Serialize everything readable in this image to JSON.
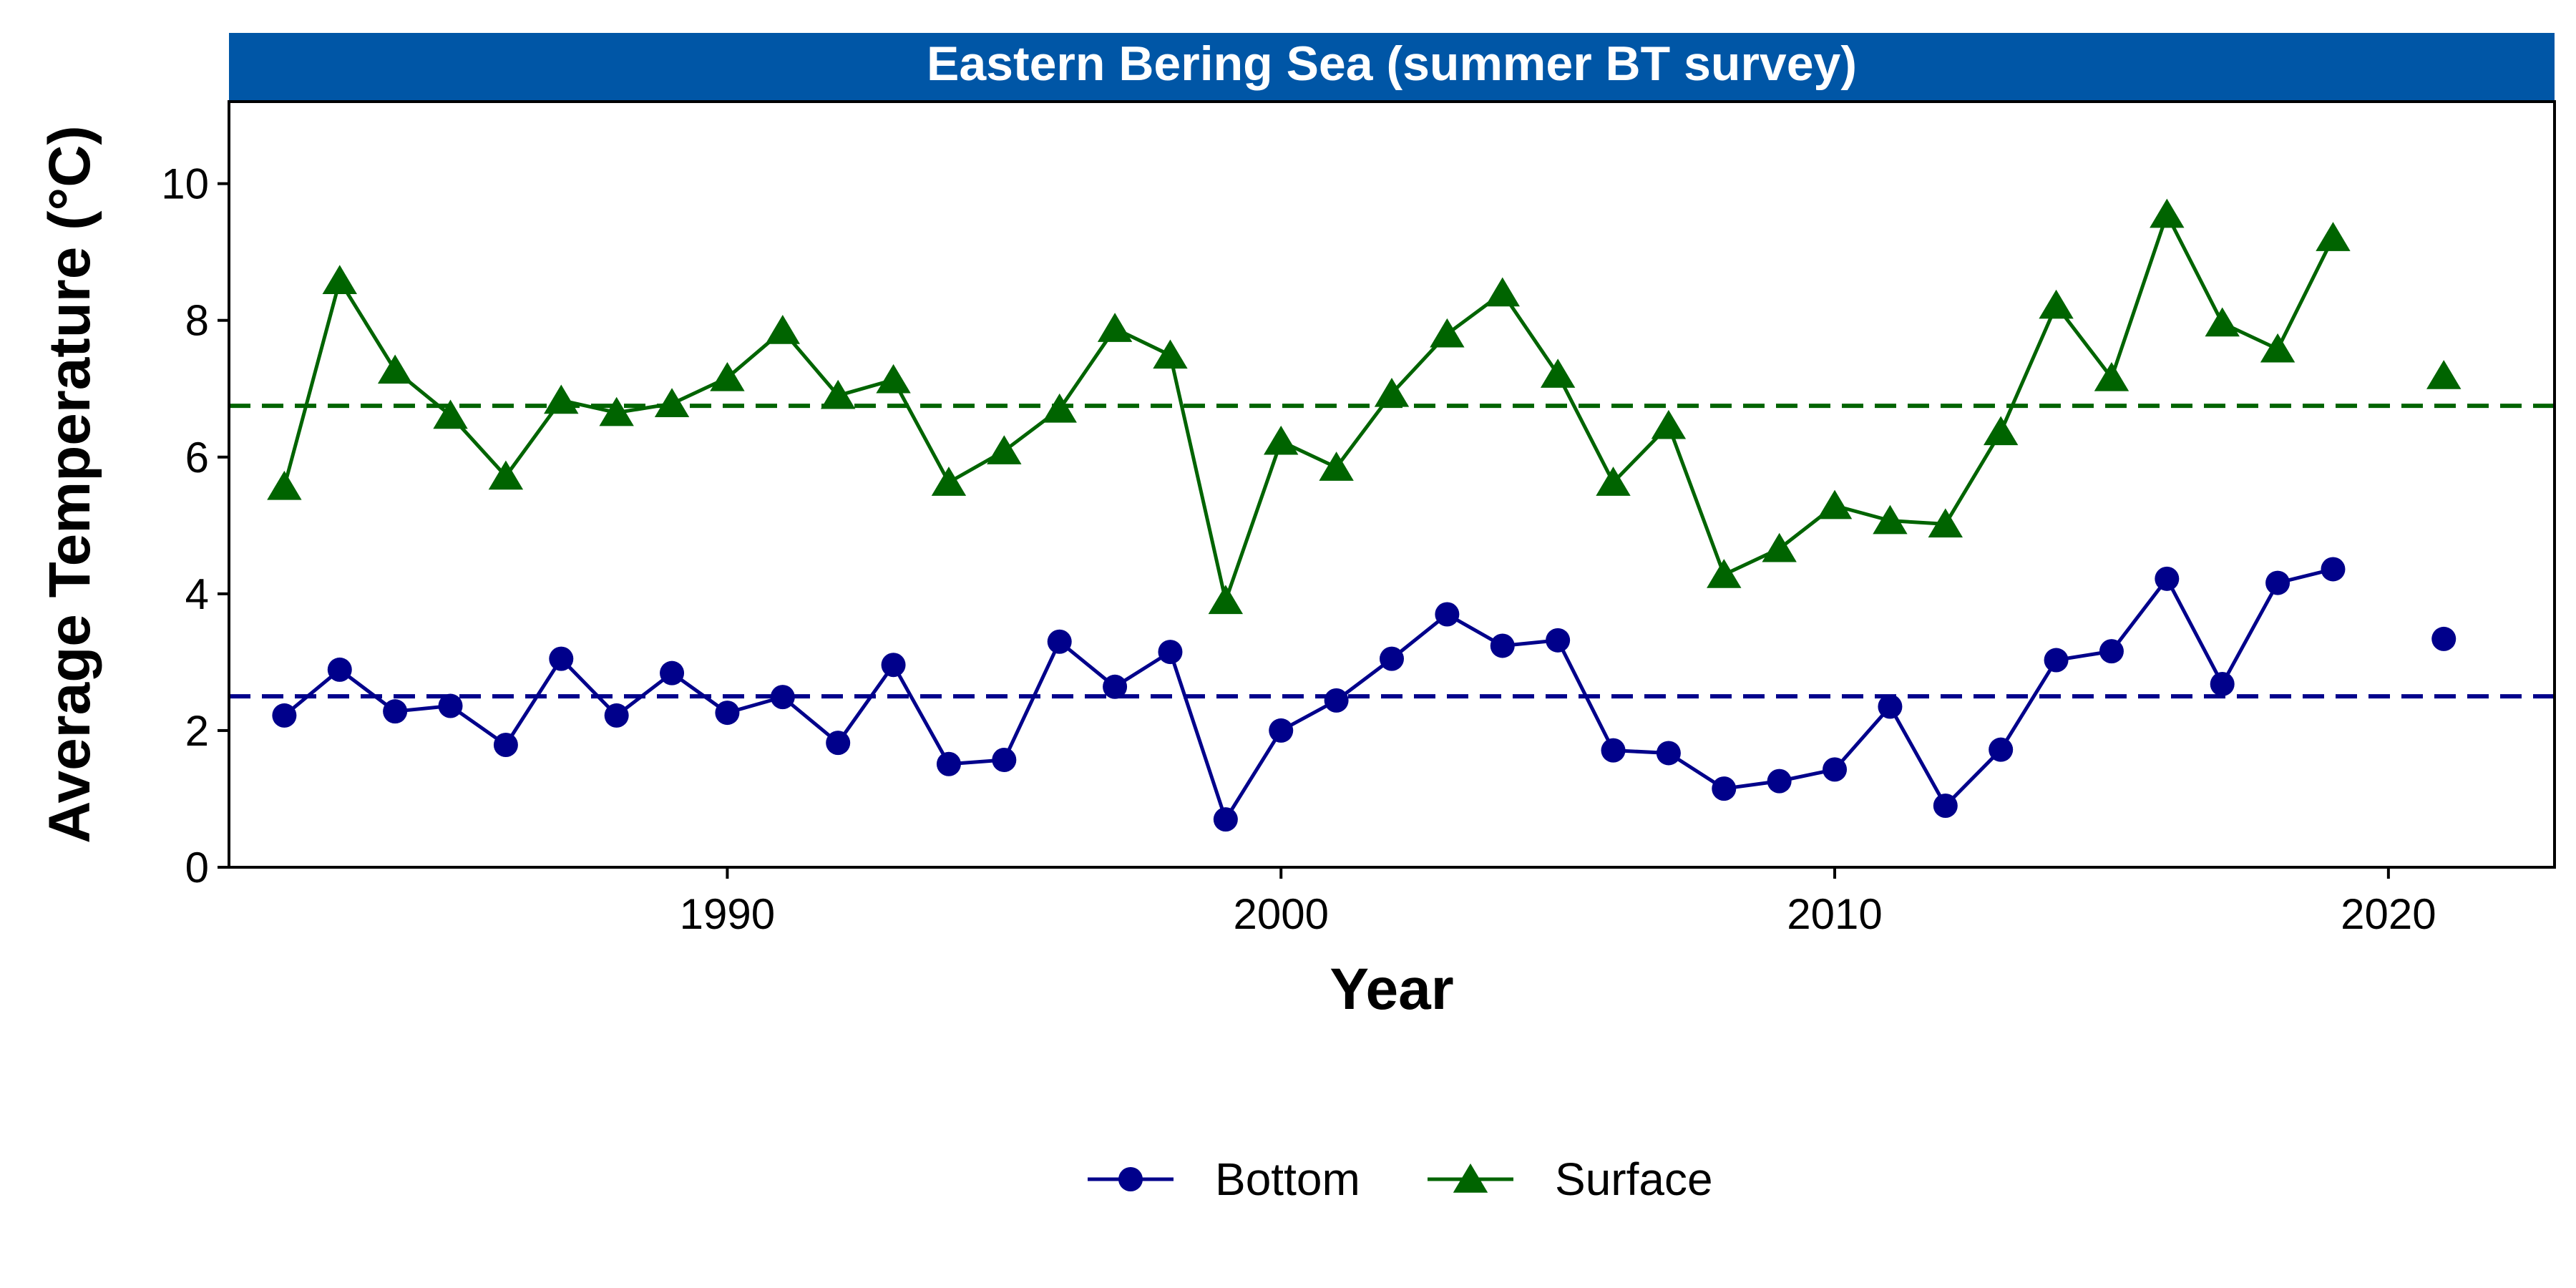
{
  "chart_data": {
    "type": "line",
    "title": "Eastern Bering Sea (summer BT survey)",
    "xlabel": "Year",
    "ylabel": "Average Temperature (°C)",
    "xlim": [
      1981,
      2023
    ],
    "ylim": [
      0,
      11.2
    ],
    "x_ticks": [
      1990,
      2000,
      2010,
      2020
    ],
    "y_ticks": [
      0,
      2,
      4,
      6,
      8,
      10
    ],
    "grid": false,
    "legend_position": "bottom",
    "colors": {
      "strip": "#0056A6",
      "bottom": "#00008B",
      "surface": "#006400"
    },
    "series": [
      {
        "name": "Bottom",
        "marker": "circle",
        "color": "#00008B",
        "mean": 2.5,
        "x": [
          1982,
          1983,
          1984,
          1985,
          1986,
          1987,
          1988,
          1989,
          1990,
          1991,
          1992,
          1993,
          1994,
          1995,
          1996,
          1997,
          1998,
          1999,
          2000,
          2001,
          2002,
          2003,
          2004,
          2005,
          2006,
          2007,
          2008,
          2009,
          2010,
          2011,
          2012,
          2013,
          2014,
          2015,
          2016,
          2017,
          2018,
          2019,
          2021
        ],
        "values": [
          2.22,
          2.89,
          2.28,
          2.36,
          1.79,
          3.05,
          2.22,
          2.84,
          2.26,
          2.49,
          1.82,
          2.96,
          1.51,
          1.57,
          3.3,
          2.64,
          3.15,
          0.7,
          2.0,
          2.44,
          3.05,
          3.7,
          3.24,
          3.32,
          1.71,
          1.67,
          1.15,
          1.26,
          1.43,
          2.35,
          0.9,
          1.72,
          3.03,
          3.16,
          4.22,
          2.68,
          4.16,
          4.36,
          3.34
        ]
      },
      {
        "name": "Surface",
        "marker": "triangle",
        "color": "#006400",
        "mean": 6.75,
        "x": [
          1982,
          1983,
          1984,
          1985,
          1986,
          1987,
          1988,
          1989,
          1990,
          1991,
          1992,
          1993,
          1994,
          1995,
          1996,
          1997,
          1998,
          1999,
          2000,
          2001,
          2002,
          2003,
          2004,
          2005,
          2006,
          2007,
          2008,
          2009,
          2010,
          2011,
          2012,
          2013,
          2014,
          2015,
          2016,
          2017,
          2018,
          2019,
          2021
        ],
        "values": [
          5.57,
          8.58,
          7.27,
          6.61,
          5.72,
          6.83,
          6.65,
          6.78,
          7.16,
          7.85,
          6.9,
          7.13,
          5.63,
          6.09,
          6.7,
          7.88,
          7.49,
          3.9,
          6.23,
          5.85,
          6.93,
          7.8,
          8.4,
          7.21,
          5.63,
          6.46,
          4.28,
          4.66,
          5.29,
          5.07,
          5.02,
          6.37,
          8.22,
          7.16,
          9.55,
          7.96,
          7.58,
          9.21,
          7.19
        ]
      }
    ]
  }
}
